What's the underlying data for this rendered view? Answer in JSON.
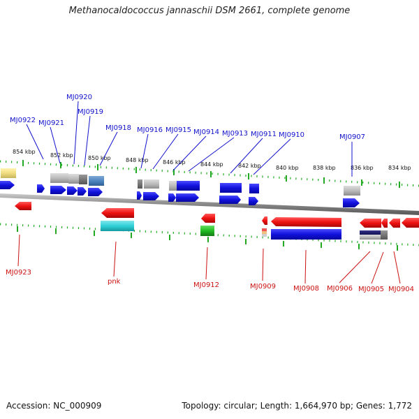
{
  "title": "Methanocaldococcus jannaschii DSM 2661, complete genome",
  "footer": {
    "accession": "Accession: NC_000909",
    "summary": "Topology: circular; Length: 1,664,970 bp; Genes: 1,772"
  },
  "ruler_labels": [
    "854 kbp",
    "852 kbp",
    "850 kbp",
    "848 kbp",
    "846 kbp",
    "844 kbp",
    "842 kbp",
    "840 kbp",
    "838 kbp",
    "836 kbp",
    "834 kbp"
  ],
  "top_gene_labels": [
    "MJ0922",
    "MJ0921",
    "MJ0920",
    "MJ0919",
    "MJ0918",
    "MJ0916",
    "MJ0915",
    "MJ0914",
    "MJ0913",
    "MJ0911",
    "MJ0910",
    "MJ0907"
  ],
  "bottom_gene_labels": [
    "MJ0923",
    "pnk",
    "MJ0912",
    "MJ0909",
    "MJ0908",
    "MJ0906",
    "MJ0905",
    "MJ0904"
  ],
  "colors": {
    "forward": "#1111dd",
    "reverse": "#ee1111",
    "label_forward": "#1111cc",
    "label_reverse": "#cc1111",
    "tick": "#22aa22",
    "backbone": "#888888"
  }
}
